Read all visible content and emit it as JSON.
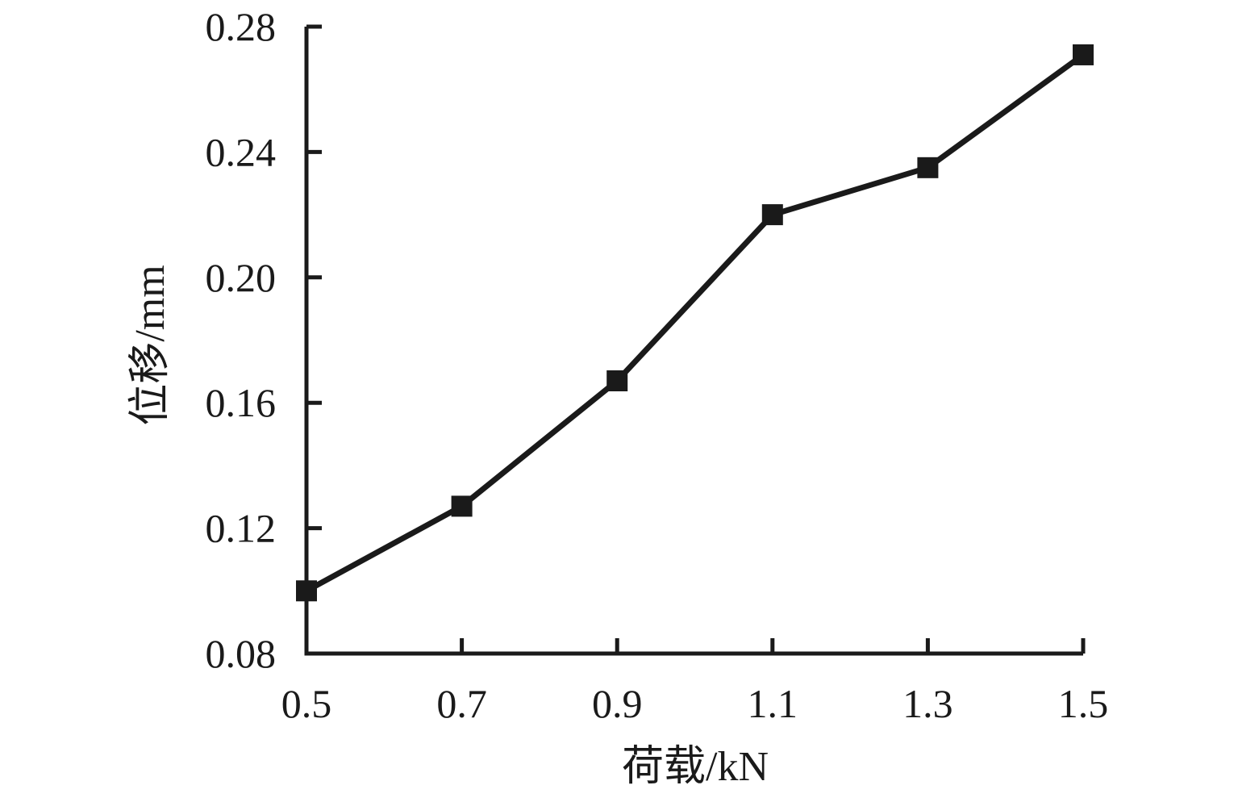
{
  "figure": {
    "background": "#ffffff",
    "ink_color": "#1a1a1a"
  },
  "chart_data": {
    "type": "line",
    "title": "",
    "xlabel": "荷载/kN",
    "ylabel": "位移/mm",
    "x": [
      0.5,
      0.7,
      0.9,
      1.1,
      1.3,
      1.5
    ],
    "series": [
      {
        "name": "位移",
        "values": [
          0.1,
          0.127,
          0.167,
          0.22,
          0.235,
          0.271
        ]
      }
    ],
    "xlim": [
      0.5,
      1.5
    ],
    "ylim": [
      0.08,
      0.28
    ],
    "xtick_values": [
      0.5,
      0.7,
      0.9,
      1.1,
      1.3,
      1.5
    ],
    "xtick_labels": [
      "0.5",
      "0.7",
      "0.9",
      "1.1",
      "1.3",
      "1.5"
    ],
    "ytick_values": [
      0.08,
      0.12,
      0.16,
      0.2,
      0.24,
      0.28
    ],
    "ytick_labels": [
      "0.08",
      "0.12",
      "0.16",
      "0.20",
      "0.24",
      "0.28"
    ],
    "grid": false,
    "legend": "none",
    "marker": "square",
    "line_color": "#1a1a1a",
    "marker_color": "#1a1a1a"
  }
}
